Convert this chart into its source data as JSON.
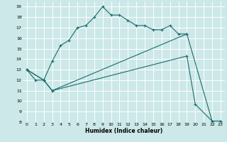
{
  "xlabel": "Humidex (Indice chaleur)",
  "bg_color": "#cce8e8",
  "grid_color": "#ffffff",
  "line_color": "#1a6b6b",
  "ylim": [
    8,
    19.5
  ],
  "xlim": [
    -0.5,
    23.5
  ],
  "yticks": [
    8,
    9,
    10,
    11,
    12,
    13,
    14,
    15,
    16,
    17,
    18,
    19
  ],
  "xticks": [
    0,
    1,
    2,
    3,
    4,
    5,
    6,
    7,
    8,
    9,
    10,
    11,
    12,
    13,
    14,
    15,
    16,
    17,
    18,
    19,
    20,
    21,
    22,
    23
  ],
  "series1_x": [
    0,
    1,
    2,
    3,
    4,
    5,
    6,
    7,
    8,
    9,
    10,
    11,
    12,
    13,
    14,
    15,
    16,
    17,
    18,
    19
  ],
  "series1_y": [
    13,
    12,
    12,
    13.8,
    15.3,
    15.8,
    17.0,
    17.2,
    18.0,
    19.0,
    18.2,
    18.2,
    17.7,
    17.2,
    17.2,
    16.8,
    16.8,
    17.2,
    16.4,
    16.4
  ],
  "series2_x": [
    0,
    2,
    3,
    19,
    22,
    23
  ],
  "series2_y": [
    13,
    12,
    11,
    16.4,
    8.1,
    8.1
  ],
  "series3_x": [
    0,
    2,
    3,
    19,
    20,
    22,
    23
  ],
  "series3_y": [
    13,
    12,
    11,
    14.3,
    9.7,
    8.1,
    8.1
  ]
}
